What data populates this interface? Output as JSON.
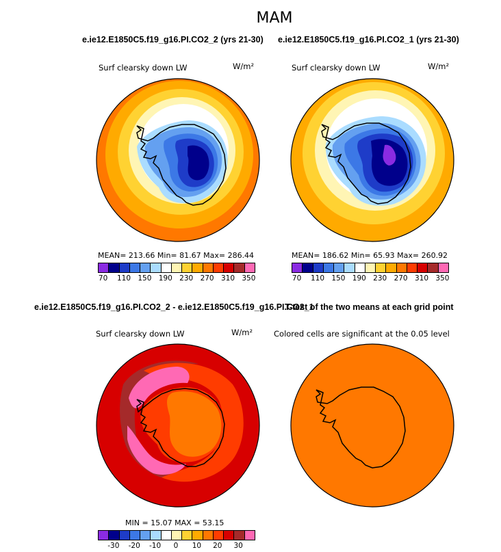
{
  "page": {
    "season": "MAM"
  },
  "panels": {
    "top_left": {
      "case_title": "e.ie12.E1850C5.f19_g16.PI.CO2_2 (yrs 21-30)",
      "variable": "Surf clearsky down LW",
      "units": "W/m²",
      "stats": "MEAN= 213.66   Min=  81.67   Max= 286.44"
    },
    "top_right": {
      "case_title": "e.ie12.E1850C5.f19_g16.PI.CO2_1 (yrs 21-30)",
      "variable": "Surf clearsky down LW",
      "units": "W/m²",
      "stats": "MEAN= 186.62   Min=  65.93   Max= 260.92"
    },
    "bottom_left": {
      "case_title": "e.ie12.E1850C5.f19_g16.PI.CO2_2 - e.ie12.E1850C5.f19_g16.PI.CO2_1",
      "variable": "Surf clearsky down LW",
      "units": "W/m²",
      "stats": "MIN =   15.07  MAX =   53.15"
    },
    "bottom_right": {
      "case_title": "T-test of the two means at each grid point",
      "variable": "Colored cells are significant at the 0.05 level"
    }
  },
  "colorbars": {
    "absolute": {
      "colors": [
        "#8a2be2",
        "#00008b",
        "#1e3cc8",
        "#3c78e6",
        "#64a0f0",
        "#aadcff",
        "#ffffff",
        "#fff5b4",
        "#ffd232",
        "#ffaa00",
        "#ff7800",
        "#ff3c00",
        "#d70000",
        "#a52a2a",
        "#ff69b4"
      ],
      "labels": [
        "70",
        "110",
        "150",
        "190",
        "230",
        "270",
        "310",
        "350"
      ]
    },
    "difference": {
      "colors": [
        "#8a2be2",
        "#00008b",
        "#1e3cc8",
        "#3c78e6",
        "#64a0f0",
        "#aadcff",
        "#ffffff",
        "#fff5b4",
        "#ffd232",
        "#ffaa00",
        "#ff7800",
        "#ff3c00",
        "#d70000",
        "#a52a2a",
        "#ff69b4"
      ],
      "labels": [
        "-30",
        "-20",
        "-10",
        "0",
        "10",
        "20",
        "30"
      ]
    }
  },
  "chart_data": [
    {
      "type": "heatmap",
      "title": "e.ie12.E1850C5.f19_g16.PI.CO2_2 (yrs 21-30)",
      "variable": "Surf clearsky down LW",
      "units": "W/m²",
      "mean": 213.66,
      "min": 81.67,
      "max": 286.44,
      "contour_levels": [
        70,
        90,
        110,
        130,
        150,
        170,
        190,
        210,
        230,
        250,
        270,
        290,
        310,
        330,
        350
      ]
    },
    {
      "type": "heatmap",
      "title": "e.ie12.E1850C5.f19_g16.PI.CO2_1 (yrs 21-30)",
      "variable": "Surf clearsky down LW",
      "units": "W/m²",
      "mean": 186.62,
      "min": 65.93,
      "max": 260.92,
      "contour_levels": [
        70,
        90,
        110,
        130,
        150,
        170,
        190,
        210,
        230,
        250,
        270,
        290,
        310,
        330,
        350
      ]
    },
    {
      "type": "heatmap",
      "title": "e.ie12.E1850C5.f19_g16.PI.CO2_2 - e.ie12.E1850C5.f19_g16.PI.CO2_1",
      "variable": "Surf clearsky down LW",
      "units": "W/m²",
      "min": 15.07,
      "max": 53.15,
      "contour_levels": [
        -35,
        -30,
        -25,
        -20,
        -15,
        -10,
        -5,
        0,
        5,
        10,
        15,
        20,
        25,
        30,
        35
      ]
    },
    {
      "type": "heatmap",
      "title": "T-test of the two means at each grid point",
      "variable": "Colored cells are significant at the 0.05 level"
    }
  ]
}
